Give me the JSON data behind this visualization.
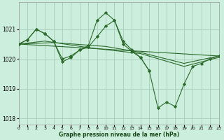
{
  "title": "Graphe pression niveau de la mer (hPa)",
  "background_color": "#cceedd",
  "grid_color": "#aaccbb",
  "line_color": "#2d6b2d",
  "marker_color": "#2d6b2d",
  "xlim": [
    0,
    23
  ],
  "ylim": [
    1017.8,
    1021.9
  ],
  "xticks": [
    0,
    1,
    2,
    3,
    4,
    5,
    6,
    7,
    8,
    9,
    10,
    11,
    12,
    13,
    14,
    15,
    16,
    17,
    18,
    19,
    20,
    21,
    22,
    23
  ],
  "yticks": [
    1018,
    1019,
    1020,
    1021
  ],
  "series": [
    {
      "x": [
        0,
        1,
        2,
        3,
        4,
        5,
        6,
        7,
        8,
        9,
        10,
        11,
        12,
        13,
        14,
        15,
        16,
        17,
        18,
        19,
        20,
        21,
        22,
        23
      ],
      "y": [
        1020.5,
        1020.65,
        1021.0,
        1020.85,
        1020.6,
        1019.9,
        1020.05,
        1020.3,
        1020.4,
        1020.75,
        1021.1,
        1021.3,
        1020.5,
        1020.25,
        1020.05,
        1019.6,
        1018.35,
        1018.55,
        1018.4,
        1019.15,
        1019.75,
        1019.85,
        1020.0,
        1020.1
      ],
      "has_markers": true
    },
    {
      "x": [
        0,
        1,
        2,
        3,
        4,
        5,
        6,
        7,
        8,
        9,
        10,
        11,
        12,
        13,
        14,
        15
      ],
      "y": [
        1020.5,
        1020.65,
        1021.0,
        1020.85,
        1020.6,
        1020.0,
        1020.1,
        1020.3,
        1020.45,
        1021.3,
        1021.55,
        1021.3,
        1020.6,
        1020.3,
        1020.05,
        1019.6
      ],
      "has_markers": true
    },
    {
      "x": [
        0,
        23
      ],
      "y": [
        1020.5,
        1020.1
      ],
      "has_markers": false
    },
    {
      "x": [
        0,
        4,
        10,
        14,
        19,
        23
      ],
      "y": [
        1020.5,
        1020.55,
        1020.42,
        1020.22,
        1019.85,
        1020.1
      ],
      "has_markers": false
    },
    {
      "x": [
        0,
        3,
        8,
        14,
        19,
        23
      ],
      "y": [
        1020.5,
        1020.6,
        1020.38,
        1020.18,
        1019.75,
        1020.05
      ],
      "has_markers": false
    }
  ]
}
